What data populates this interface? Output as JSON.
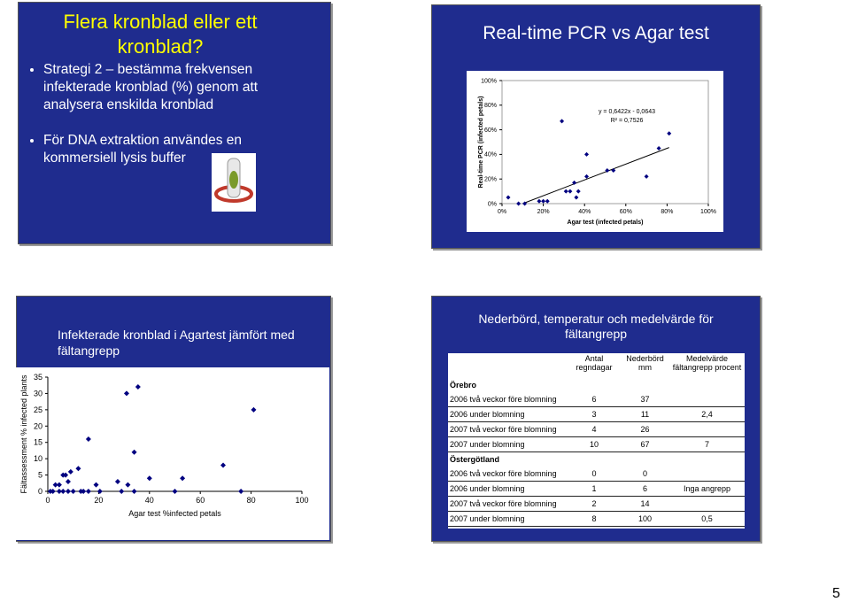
{
  "page_number": 5,
  "text_slide": {
    "title": "Flera kronblad eller ett kronblad?",
    "bullets": [
      "Strategi 2 – bestämma frekvensen infekterade kronblad (%) genom att analysera enskilda kronblad",
      "För DNA extraktion användes en kommersiell lysis buffer"
    ]
  },
  "chart_data": [
    {
      "type": "scatter",
      "title": "Real-time PCR vs Agar test",
      "x_label": "Agar test (infected petals)",
      "y_label": "Real-time PCR (infected petals)",
      "x": [
        0.03,
        0.08,
        0.11,
        0.18,
        0.2,
        0.22,
        0.29,
        0.31,
        0.33,
        0.35,
        0.36,
        0.37,
        0.41,
        0.41,
        0.51,
        0.54,
        0.7,
        0.76,
        0.81
      ],
      "values": [
        0.05,
        0,
        0,
        0.02,
        0.02,
        0.02,
        0.67,
        0.1,
        0.1,
        0.17,
        0.05,
        0.1,
        0.22,
        0.4,
        0.27,
        0.27,
        0.22,
        0.45,
        0.57
      ],
      "color": "#000080",
      "xlim": [
        0,
        1
      ],
      "ylim": [
        0,
        1
      ],
      "xticks": [
        {
          "value": 0,
          "label": "0%"
        },
        {
          "value": 0.2,
          "label": "20%"
        },
        {
          "value": 0.4,
          "label": "40%"
        },
        {
          "value": 0.6,
          "label": "60%"
        },
        {
          "value": 0.8,
          "label": "80%"
        },
        {
          "value": 1,
          "label": "100%"
        }
      ],
      "yticks": [
        {
          "value": 0,
          "label": "0%"
        },
        {
          "value": 0.2,
          "label": "20%"
        },
        {
          "value": 0.4,
          "label": "40%"
        },
        {
          "value": 0.6,
          "label": "60%"
        },
        {
          "value": 0.8,
          "label": "80%"
        },
        {
          "value": 1,
          "label": "100%"
        }
      ],
      "trendline": {
        "slope": 0.6422,
        "intercept": -0.0643
      },
      "annotations": [
        "y = 0,6422x - 0,0643",
        "R² = 0,7526"
      ]
    },
    {
      "type": "scatter",
      "title": "Infekterade kronblad i Agartest jämfört med fältangrepp",
      "x_label": "Agar test %infected petals",
      "y_label": "Fältassessment % infected plants",
      "x": [
        1,
        2,
        4.5,
        6,
        8,
        10,
        13,
        14,
        16,
        20.5,
        29,
        34,
        50,
        76,
        3,
        4.5,
        6,
        7,
        9,
        8,
        12,
        16,
        19,
        27.5,
        31.5,
        31,
        35.5,
        34,
        40,
        53,
        69,
        81
      ],
      "values": [
        0,
        0,
        0,
        0,
        0,
        0,
        0,
        0,
        0,
        0,
        0,
        0,
        0,
        0,
        2,
        2,
        5,
        5,
        6,
        3,
        7,
        16,
        2,
        3,
        2,
        30,
        32,
        12,
        4,
        4,
        8,
        25
      ],
      "color": "#000080",
      "xlim": [
        0,
        100
      ],
      "ylim": [
        0,
        35
      ],
      "xticks": [
        0,
        20,
        40,
        60,
        80,
        100
      ],
      "yticks": [
        0,
        5,
        10,
        15,
        20,
        25,
        30,
        35
      ]
    }
  ],
  "table_slide": {
    "title": "Nederbörd, temperatur och medelvärde för fältangrepp",
    "columns": [
      "Antal regndagar",
      "Nederbörd mm",
      "Medelvärde fältangrepp procent"
    ],
    "sections": [
      {
        "name": "Örebro",
        "rows": [
          [
            "2006 två veckor före blomning",
            6,
            37,
            null
          ],
          [
            "2006 under blomning",
            3,
            11,
            "2,4"
          ],
          [
            "2007 två veckor före blomning",
            4,
            26,
            null
          ],
          [
            "2007 under blomning",
            10,
            67,
            7
          ]
        ]
      },
      {
        "name": "Östergötland",
        "rows": [
          [
            "2006 två veckor före blomning",
            0,
            0,
            null
          ],
          [
            "2006 under blomning",
            1,
            6,
            "Inga angrepp"
          ],
          [
            "2007 två veckor före blomning",
            2,
            14,
            null
          ],
          [
            "2007 under blomning",
            8,
            100,
            "0,5"
          ]
        ]
      }
    ]
  }
}
